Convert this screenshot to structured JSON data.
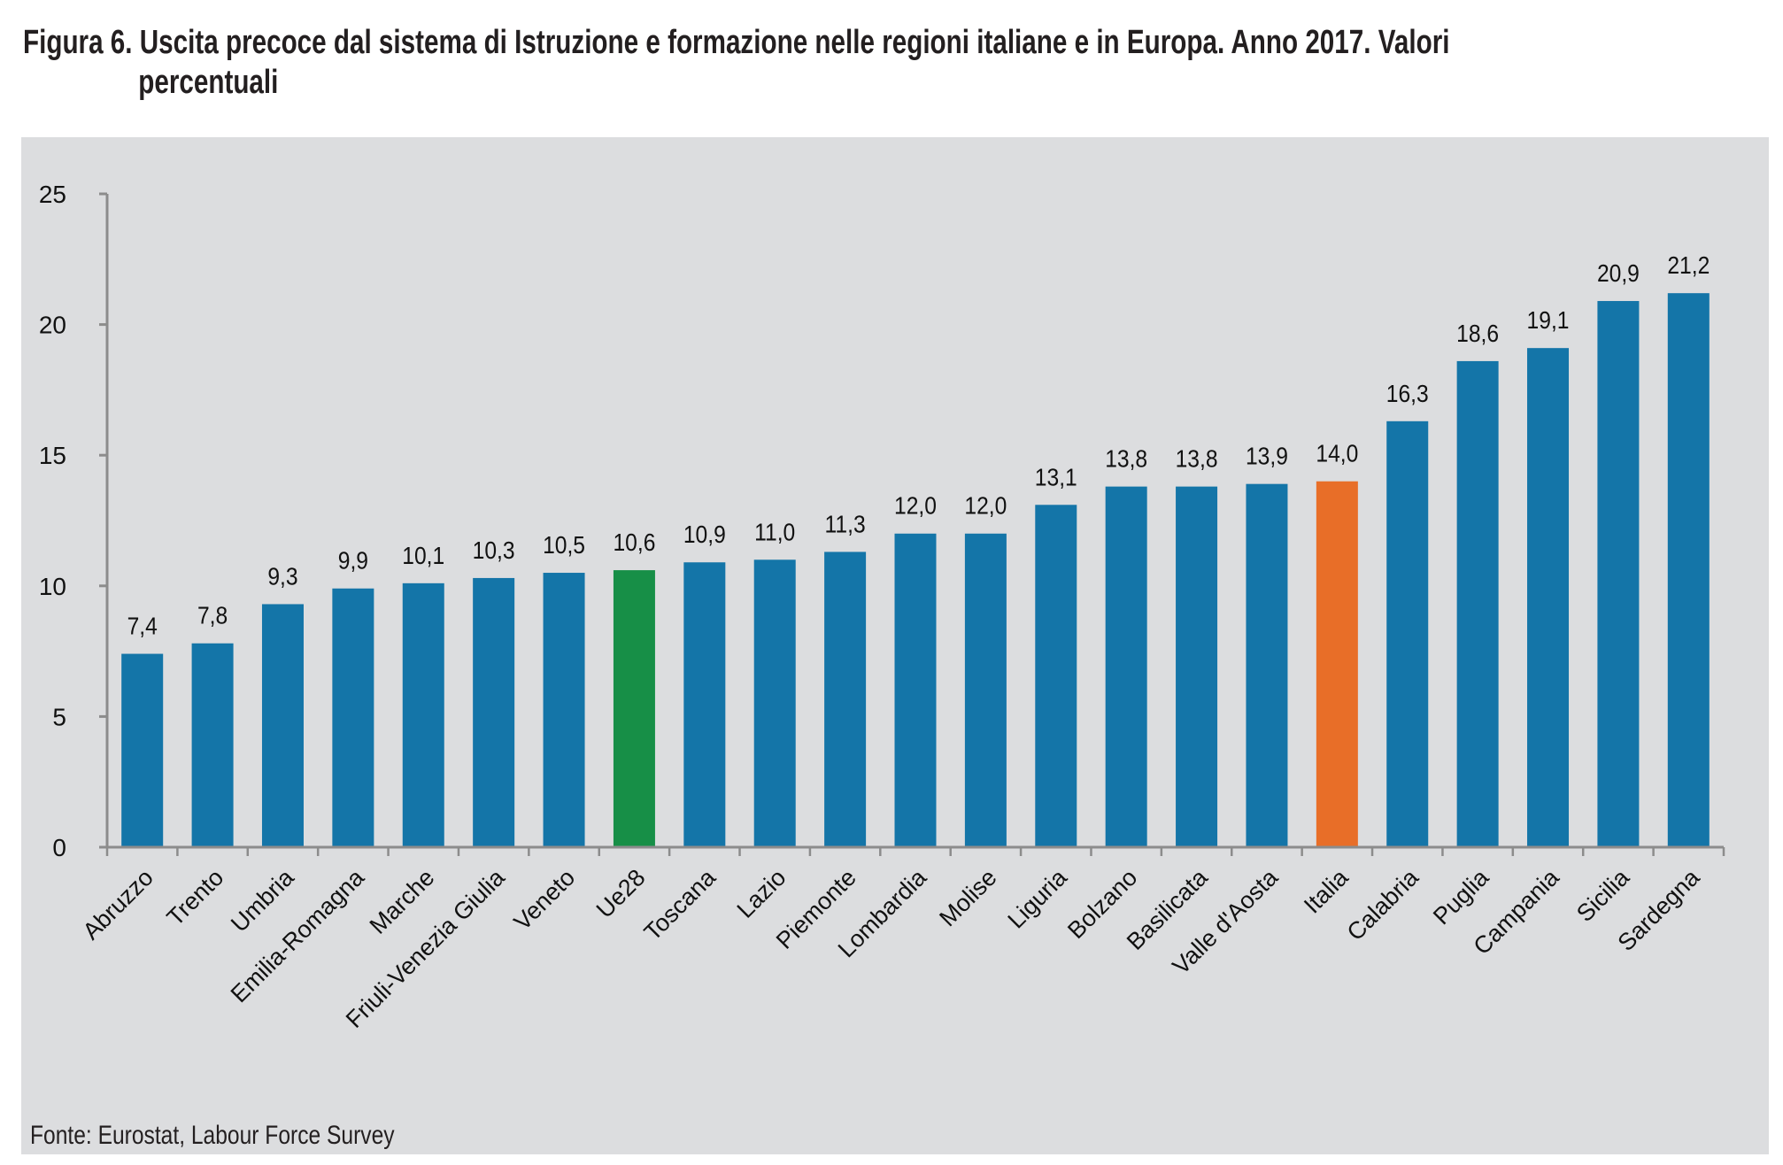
{
  "figure": {
    "title_line1": "Figura 6. Uscita precoce dal sistema di Istruzione e formazione nelle regioni italiane e in Europa. Anno 2017. Valori",
    "title_line2": "percentuali",
    "source": "Fonte: Eurostat, Labour Force Survey"
  },
  "colors": {
    "default_bar": "#1475a8",
    "ue28_bar": "#178f47",
    "italia_bar": "#e86e28",
    "panel_background": "#dcdddf",
    "axis": "#8c8c8c"
  },
  "chart_data": {
    "type": "bar",
    "title": "Uscita precoce dal sistema di Istruzione e formazione nelle regioni italiane e in Europa. Anno 2017. Valori percentuali",
    "xlabel": "",
    "ylabel": "",
    "ylim": [
      0,
      25
    ],
    "yticks": [
      0,
      5,
      10,
      15,
      20,
      25
    ],
    "grid": false,
    "legend": "none",
    "categories": [
      "Abruzzo",
      "Trento",
      "Umbria",
      "Emilia-Romagna",
      "Marche",
      "Friuli-Venezia Giulia",
      "Veneto",
      "Ue28",
      "Toscana",
      "Lazio",
      "Piemonte",
      "Lombardia",
      "Molise",
      "Liguria",
      "Bolzano",
      "Basilicata",
      "Valle d'Aosta",
      "Italia",
      "Calabria",
      "Puglia",
      "Campania",
      "Sicilia",
      "Sardegna"
    ],
    "values": [
      7.4,
      7.8,
      9.3,
      9.9,
      10.1,
      10.3,
      10.5,
      10.6,
      10.9,
      11.0,
      11.3,
      12.0,
      12.0,
      13.1,
      13.8,
      13.8,
      13.9,
      14.0,
      16.3,
      18.6,
      19.1,
      20.9,
      21.2
    ],
    "data_labels": [
      "7,4",
      "7,8",
      "9,3",
      "9,9",
      "10,1",
      "10,3",
      "10,5",
      "10,6",
      "10,9",
      "11,0",
      "11,3",
      "12,0",
      "12,0",
      "13,1",
      "13,8",
      "13,8",
      "13,9",
      "14,0",
      "16,3",
      "18,6",
      "19,1",
      "20,9",
      "21,2"
    ],
    "highlight": {
      "Ue28": "ue28_bar",
      "Italia": "italia_bar"
    }
  }
}
